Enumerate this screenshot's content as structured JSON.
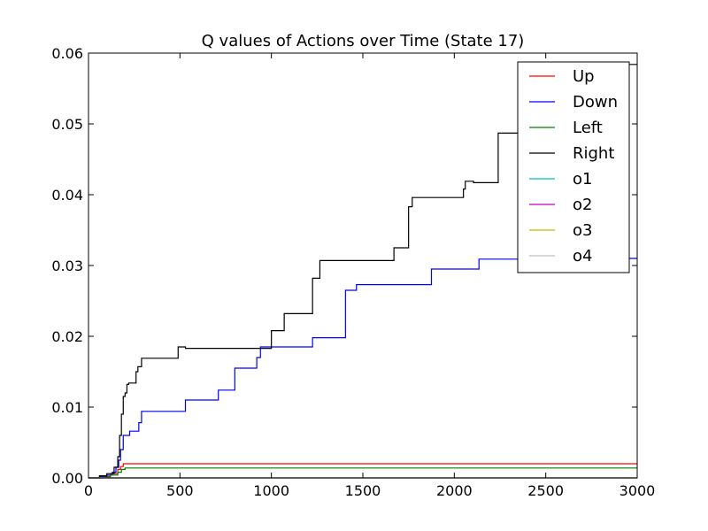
{
  "chart_data": {
    "type": "line",
    "title": "Q values of Actions over Time (State 17)",
    "xlabel": "",
    "ylabel": "",
    "xlim": [
      0,
      3000
    ],
    "ylim": [
      0,
      0.06
    ],
    "xticks": [
      0,
      500,
      1000,
      1500,
      2000,
      2500,
      3000
    ],
    "xtick_labels": [
      "0",
      "500",
      "1000",
      "1500",
      "2000",
      "2500",
      "3000"
    ],
    "yticks": [
      0,
      0.01,
      0.02,
      0.03,
      0.04,
      0.05,
      0.06
    ],
    "ytick_labels": [
      "0.00",
      "0.01",
      "0.02",
      "0.03",
      "0.04",
      "0.05",
      "0.06"
    ],
    "grid": false,
    "legend_position": "top-right",
    "series": [
      {
        "name": "Up",
        "color": "#ff0000",
        "step": true,
        "x": [
          0,
          80,
          120,
          160,
          175,
          190,
          3000
        ],
        "y": [
          0,
          0.0002,
          0.0006,
          0.0012,
          0.0016,
          0.002,
          0.002
        ]
      },
      {
        "name": "Down",
        "color": "#0000ff",
        "step": true,
        "x": [
          0,
          60,
          100,
          130,
          150,
          165,
          175,
          190,
          200,
          225,
          275,
          290,
          530,
          710,
          800,
          920,
          940,
          1225,
          1405,
          1465,
          1875,
          2135,
          2360,
          2500,
          3000
        ],
        "y": [
          0,
          0.0002,
          0.0004,
          0.0008,
          0.0015,
          0.0025,
          0.004,
          0.006,
          0.006,
          0.0066,
          0.0078,
          0.0094,
          0.011,
          0.0124,
          0.0155,
          0.017,
          0.0185,
          0.0198,
          0.0265,
          0.0273,
          0.0295,
          0.0309,
          0.0309,
          0.031,
          0.031
        ]
      },
      {
        "name": "Left",
        "color": "#008000",
        "step": true,
        "x": [
          0,
          80,
          120,
          160,
          180,
          200,
          3000
        ],
        "y": [
          0,
          0.0001,
          0.0004,
          0.0008,
          0.0012,
          0.0014,
          0.0014
        ]
      },
      {
        "name": "Right",
        "color": "#000000",
        "step": true,
        "x": [
          0,
          60,
          100,
          140,
          160,
          170,
          180,
          190,
          200,
          210,
          220,
          260,
          270,
          290,
          490,
          530,
          1000,
          1070,
          1225,
          1265,
          1390,
          1670,
          1750,
          1770,
          2050,
          2060,
          2105,
          2240,
          2480,
          2500,
          3000
        ],
        "y": [
          0,
          0.0003,
          0.0006,
          0.0015,
          0.003,
          0.006,
          0.009,
          0.0115,
          0.012,
          0.0132,
          0.0134,
          0.015,
          0.0157,
          0.0169,
          0.0185,
          0.0183,
          0.0208,
          0.0232,
          0.0282,
          0.0307,
          0.0307,
          0.0325,
          0.0383,
          0.0396,
          0.0408,
          0.0419,
          0.0417,
          0.0487,
          0.0487,
          0.0584,
          0.0584
        ]
      },
      {
        "name": "o1",
        "color": "#00bfbf",
        "step": true,
        "x": [
          0,
          3000
        ],
        "y": [
          0,
          0
        ]
      },
      {
        "name": "o2",
        "color": "#bf00bf",
        "step": true,
        "x": [
          0,
          3000
        ],
        "y": [
          0,
          0
        ]
      },
      {
        "name": "o3",
        "color": "#bfbf00",
        "step": true,
        "x": [
          0,
          3000
        ],
        "y": [
          0,
          0
        ]
      },
      {
        "name": "o4",
        "color": "#bfbfbf",
        "step": true,
        "x": [
          0,
          3000
        ],
        "y": [
          0,
          0
        ]
      }
    ]
  }
}
